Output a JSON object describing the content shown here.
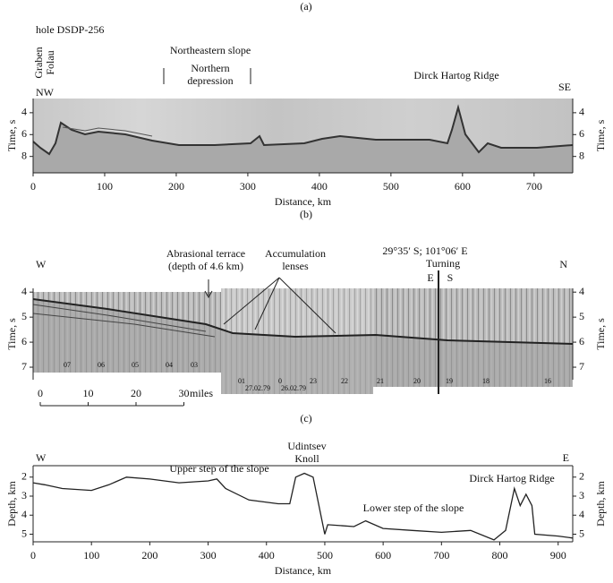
{
  "chart_data": [
    {
      "type": "seismic",
      "label": "(a)",
      "annotations": {
        "hole": "hole DSDP-256",
        "graben": [
          "Graben",
          "Folau"
        ],
        "slope": "Northeastern slope",
        "depression": [
          "Northern",
          "depression"
        ],
        "ridge": "Dirck Hartog Ridge",
        "left": "NW",
        "right": "SE"
      },
      "xlabel": "Distance, km",
      "ylabel": "Time, s",
      "xlim": [
        0,
        754
      ],
      "xticks": [
        0,
        100,
        200,
        300,
        400,
        500,
        600,
        700
      ],
      "ylim": [
        9.5,
        2.7
      ],
      "yticks": [
        4,
        6,
        8
      ]
    },
    {
      "type": "seismic",
      "label": "(b)",
      "annotations": {
        "left": "W",
        "right": "N",
        "terrace": [
          "Abrasional terrace",
          "(depth of 4.6 km)"
        ],
        "lenses": [
          "Accumulation",
          "lenses"
        ],
        "coords": "29°35′ S; 101°06′ E",
        "turning": "Turning",
        "e": "E",
        "s": "S"
      },
      "ylabel": "Time, s",
      "ylim": [
        7.5,
        3.85
      ],
      "yticks": [
        4,
        5,
        6,
        7
      ],
      "scale_ticks": [
        0,
        10,
        20,
        30
      ],
      "scale_unit": "miles",
      "shot_labels": [
        "07",
        "06",
        "05",
        "04",
        "03",
        "01",
        "0",
        "23",
        "22",
        "21",
        "20",
        "19",
        "18",
        "16"
      ],
      "dates": [
        "27.02.79",
        "26.02.79"
      ]
    },
    {
      "type": "line",
      "label": "(c)",
      "annotations": {
        "left": "W",
        "right": "E",
        "upper": "Upper step of the slope",
        "knoll": [
          "Udintsev",
          "Knoll"
        ],
        "lower": "Lower step of the slope",
        "ridge": "Dirck Hartog Ridge"
      },
      "xlabel": "Distance, km",
      "ylabel": "Depth, km",
      "x": [
        0,
        20,
        50,
        100,
        130,
        160,
        200,
        250,
        300,
        315,
        330,
        370,
        420,
        440,
        450,
        465,
        480,
        490,
        500,
        505,
        550,
        570,
        600,
        650,
        700,
        750,
        790,
        810,
        825,
        835,
        845,
        855,
        860,
        900,
        925
      ],
      "values": [
        2.3,
        2.4,
        2.6,
        2.7,
        2.4,
        2.0,
        2.1,
        2.3,
        2.2,
        2.1,
        2.6,
        3.2,
        3.4,
        3.4,
        2.0,
        1.8,
        2.0,
        3.5,
        5.0,
        4.5,
        4.6,
        4.3,
        4.7,
        4.8,
        4.9,
        4.8,
        5.3,
        4.8,
        2.6,
        3.5,
        2.9,
        3.5,
        5.0,
        5.1,
        5.2
      ],
      "color": "#222222",
      "xlim": [
        0,
        925
      ],
      "xticks": [
        0,
        100,
        200,
        300,
        400,
        500,
        600,
        700,
        800,
        900
      ],
      "ylim": [
        5.4,
        1.4
      ],
      "yticks": [
        2,
        3,
        4,
        5
      ]
    }
  ]
}
